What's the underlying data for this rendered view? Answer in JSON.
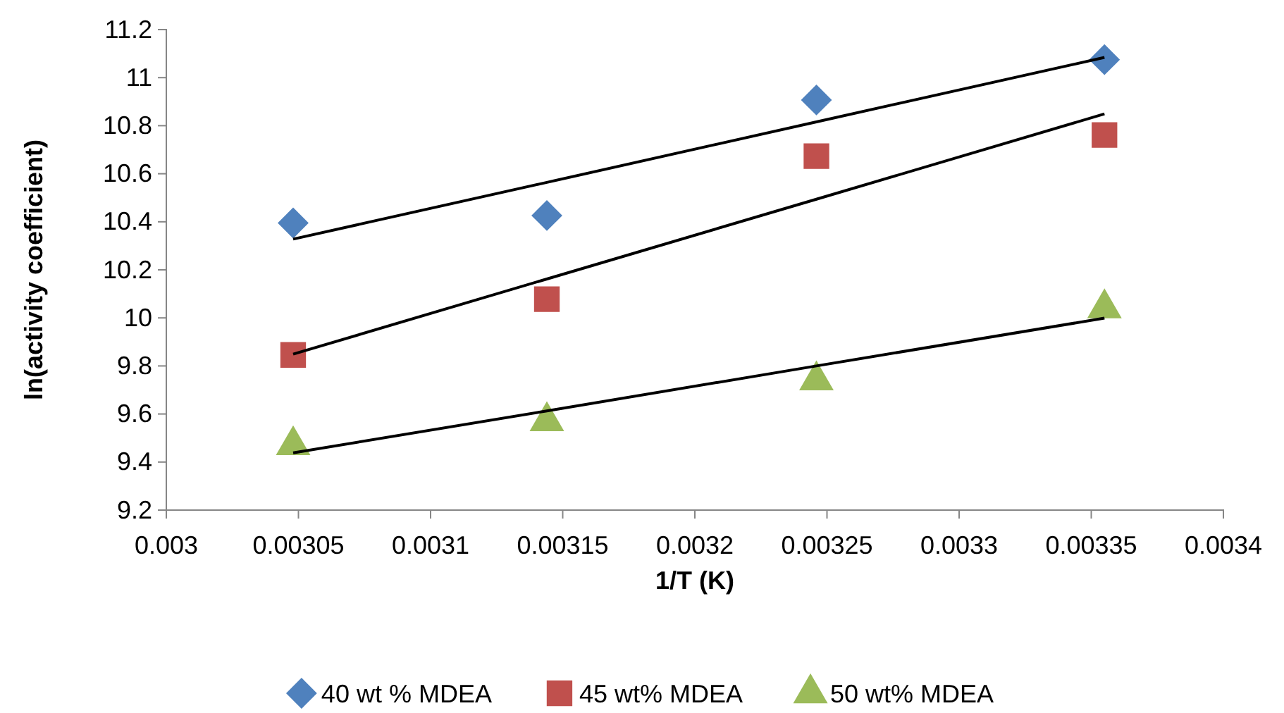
{
  "chart_data": {
    "type": "scatter",
    "xlabel": "1/T (K)",
    "ylabel": "ln(activity coefficient)",
    "x": [
      0.003048,
      0.003144,
      0.003246,
      0.003355
    ],
    "xlim": [
      0.003,
      0.0034
    ],
    "xticks": [
      0.003,
      0.00305,
      0.0031,
      0.00315,
      0.0032,
      0.00325,
      0.0033,
      0.00335,
      0.0034
    ],
    "ylim": [
      9.2,
      11.2
    ],
    "yticks": [
      9.2,
      9.4,
      9.6,
      9.8,
      10,
      10.2,
      10.4,
      10.6,
      10.8,
      11,
      11.2
    ],
    "grid": false,
    "legend": "bottom",
    "series": [
      {
        "name": "40 wt % MDEA",
        "color": "#4f81bd",
        "marker": "diamond",
        "values": [
          10.395,
          10.426,
          10.907,
          11.075
        ]
      },
      {
        "name": "45 wt% MDEA",
        "color": "#c0504d",
        "marker": "square",
        "values": [
          9.846,
          10.078,
          10.673,
          10.761
        ]
      },
      {
        "name": "50 wt% MDEA",
        "color": "#9bbb59",
        "marker": "triangle",
        "values": [
          9.47,
          9.57,
          9.74,
          10.04
        ]
      },
      {
        "type": "line",
        "color": "#000000",
        "marker": "none",
        "values": [
          10.328,
          10.564,
          10.816,
          11.084
        ]
      },
      {
        "type": "line",
        "color": "#000000",
        "marker": "none",
        "values": [
          9.849,
          10.162,
          10.494,
          10.849
        ]
      },
      {
        "type": "line",
        "color": "#000000",
        "marker": "none",
        "values": [
          9.438,
          9.613,
          9.8,
          9.999
        ]
      }
    ]
  }
}
